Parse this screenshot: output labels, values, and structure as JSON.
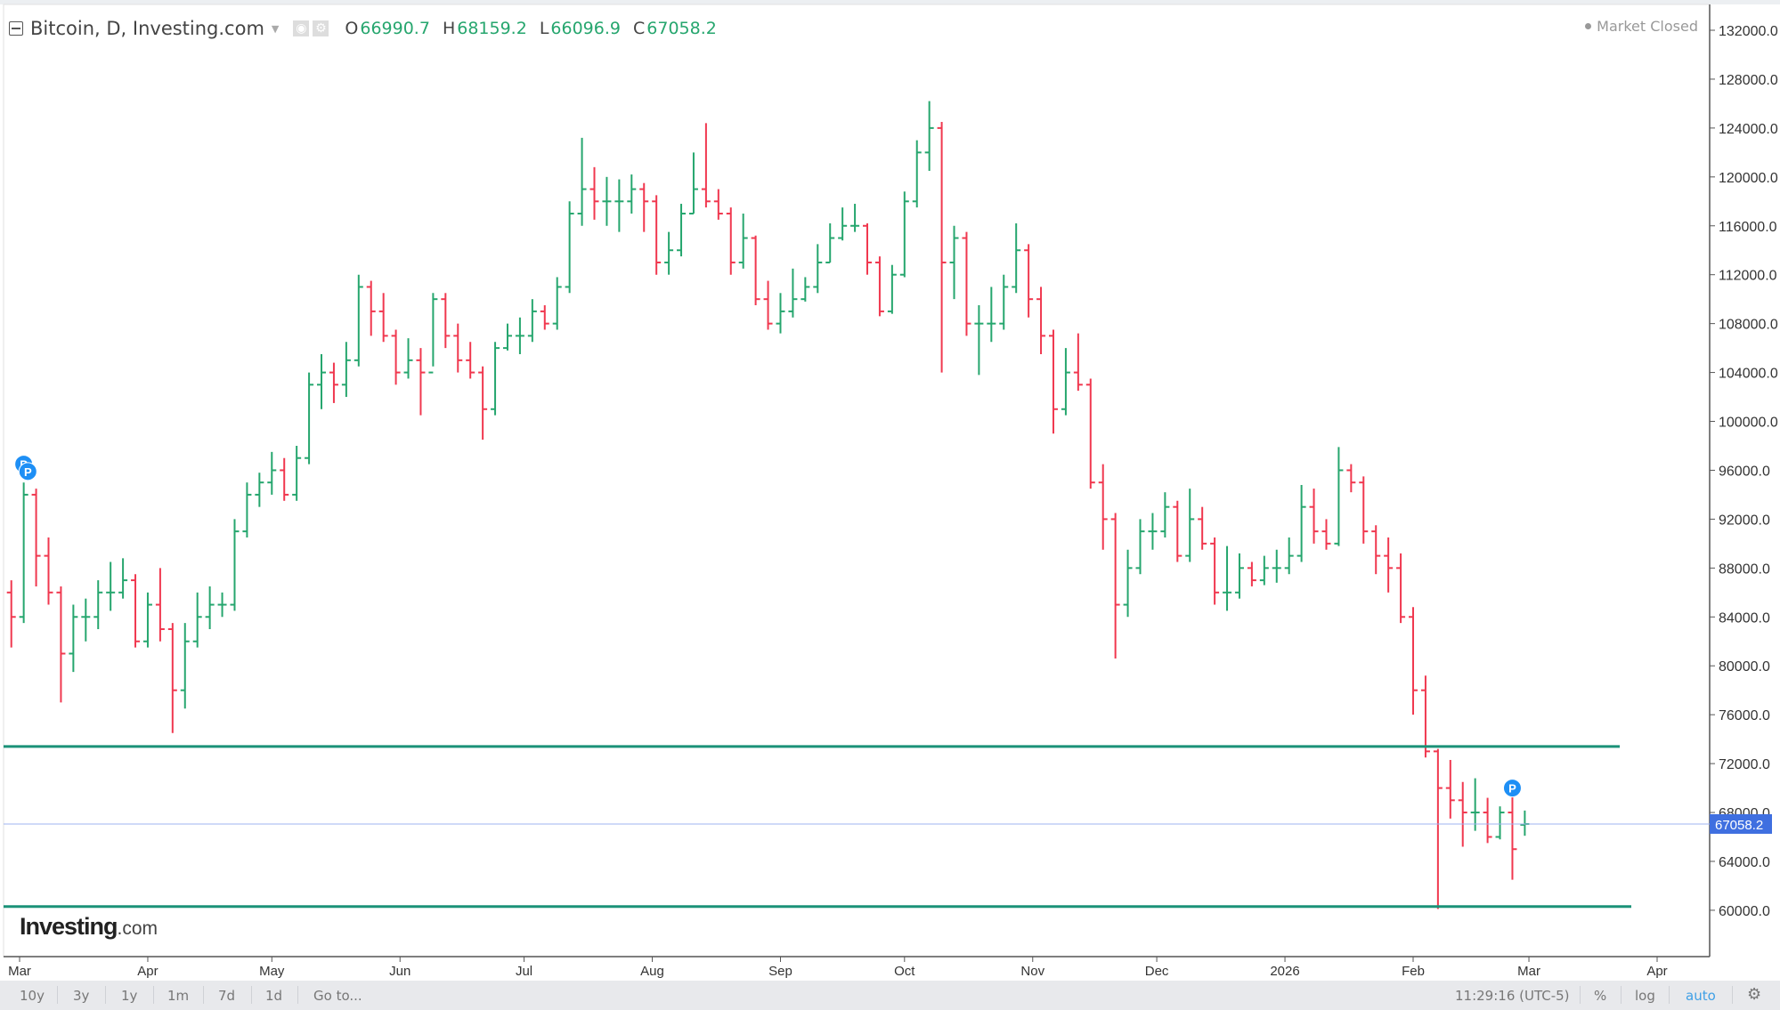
{
  "header": {
    "title": "Bitcoin, D, Investing.com",
    "ohlc": [
      {
        "key": "O",
        "value": "66990.7"
      },
      {
        "key": "H",
        "value": "68159.2"
      },
      {
        "key": "L",
        "value": "66096.9"
      },
      {
        "key": "C",
        "value": "67058.2"
      }
    ],
    "status": "Market Closed"
  },
  "logo": {
    "brand": "Investing",
    "suffix": ".com"
  },
  "colors": {
    "up": "#26a66e",
    "down": "#f0384f",
    "support_line": "#1b9278",
    "last_price": "#3f6fe0",
    "marker": "#1e8ff5"
  },
  "toolbar": {
    "ranges": [
      "10y",
      "3y",
      "1y",
      "1m",
      "7d",
      "1d"
    ],
    "goto": "Go to...",
    "time": "11:29:16 (UTC-5)",
    "percent": "%",
    "log": "log",
    "auto": "auto",
    "settings_icon": "gear-icon"
  },
  "chart_data": {
    "type": "ohlc",
    "title": "Bitcoin, D, Investing.com",
    "ylim": [
      58000,
      133000
    ],
    "y_ticks": [
      "60000.0",
      "64000.0",
      "68000.0",
      "72000.0",
      "76000.0",
      "80000.0",
      "84000.0",
      "88000.0",
      "92000.0",
      "96000.0",
      "100000.0",
      "104000.0",
      "108000.0",
      "112000.0",
      "116000.0",
      "120000.0",
      "124000.0",
      "128000.0",
      "132000.0"
    ],
    "x_ticks": [
      {
        "label": "Mar",
        "date": "2025-03-01"
      },
      {
        "label": "Apr",
        "date": "2025-04-01"
      },
      {
        "label": "May",
        "date": "2025-05-01"
      },
      {
        "label": "Jun",
        "date": "2025-06-01"
      },
      {
        "label": "Jul",
        "date": "2025-07-01"
      },
      {
        "label": "Aug",
        "date": "2025-08-01"
      },
      {
        "label": "Sep",
        "date": "2025-09-01"
      },
      {
        "label": "Oct",
        "date": "2025-10-01"
      },
      {
        "label": "Nov",
        "date": "2025-11-01"
      },
      {
        "label": "Dec",
        "date": "2025-12-01"
      },
      {
        "label": "2026",
        "date": "2026-01-01"
      },
      {
        "label": "Feb",
        "date": "2026-02-01"
      },
      {
        "label": "Mar",
        "date": "2026-03-01"
      },
      {
        "label": "Apr",
        "date": "2026-04-01"
      }
    ],
    "last_price": 67058.2,
    "last_price_label": "67058.2",
    "horizontal_lines": [
      73400,
      60300
    ],
    "markers": [
      {
        "label": "P",
        "date": "2025-03-02",
        "price": 96500
      },
      {
        "label": "P",
        "date": "2025-03-03",
        "price": 95900
      },
      {
        "label": "P",
        "date": "2026-02-25",
        "price": 70000
      }
    ],
    "bars_fields": [
      "date",
      "open",
      "high",
      "low",
      "close"
    ],
    "bars": [
      [
        "2025-02-27",
        86000,
        87000,
        81500,
        84000
      ],
      [
        "2025-03-02",
        84000,
        95000,
        83500,
        94000
      ],
      [
        "2025-03-05",
        94000,
        94500,
        86500,
        89000
      ],
      [
        "2025-03-08",
        89000,
        90500,
        85000,
        86000
      ],
      [
        "2025-03-11",
        86000,
        86500,
        77000,
        81000
      ],
      [
        "2025-03-14",
        81000,
        85000,
        79500,
        84000
      ],
      [
        "2025-03-17",
        84000,
        85500,
        82000,
        84000
      ],
      [
        "2025-03-20",
        84000,
        87000,
        83000,
        86000
      ],
      [
        "2025-03-23",
        86000,
        88500,
        84500,
        86000
      ],
      [
        "2025-03-26",
        86000,
        88800,
        85500,
        87000
      ],
      [
        "2025-03-29",
        87000,
        87500,
        81500,
        82000
      ],
      [
        "2025-04-01",
        82000,
        86000,
        81500,
        85000
      ],
      [
        "2025-04-04",
        85000,
        88000,
        82000,
        83000
      ],
      [
        "2025-04-07",
        83000,
        83500,
        74500,
        78000
      ],
      [
        "2025-04-10",
        78000,
        83500,
        76500,
        82000
      ],
      [
        "2025-04-13",
        82000,
        86000,
        81500,
        84000
      ],
      [
        "2025-04-16",
        84000,
        86500,
        83000,
        85000
      ],
      [
        "2025-04-19",
        85000,
        86000,
        84000,
        85000
      ],
      [
        "2025-04-22",
        85000,
        92000,
        84500,
        91000
      ],
      [
        "2025-04-25",
        91000,
        95000,
        90500,
        94000
      ],
      [
        "2025-04-28",
        94000,
        95800,
        93000,
        95000
      ],
      [
        "2025-05-01",
        95000,
        97500,
        94000,
        96000
      ],
      [
        "2025-05-04",
        96000,
        97000,
        93500,
        94000
      ],
      [
        "2025-05-07",
        94000,
        98000,
        93500,
        97000
      ],
      [
        "2025-05-10",
        97000,
        104000,
        96500,
        103000
      ],
      [
        "2025-05-13",
        103000,
        105500,
        101000,
        104000
      ],
      [
        "2025-05-16",
        104000,
        104800,
        101500,
        103000
      ],
      [
        "2025-05-19",
        103000,
        106500,
        102000,
        105000
      ],
      [
        "2025-05-22",
        105000,
        112000,
        104500,
        111000
      ],
      [
        "2025-05-25",
        111000,
        111500,
        107000,
        109000
      ],
      [
        "2025-05-28",
        109000,
        110500,
        106500,
        107000
      ],
      [
        "2025-05-31",
        107000,
        107500,
        103000,
        104000
      ],
      [
        "2025-06-03",
        104000,
        106800,
        103500,
        105000
      ],
      [
        "2025-06-06",
        105000,
        106000,
        100500,
        104000
      ],
      [
        "2025-06-09",
        104000,
        110500,
        104500,
        110000
      ],
      [
        "2025-06-12",
        110000,
        110500,
        106000,
        107000
      ],
      [
        "2025-06-15",
        107000,
        108000,
        104000,
        105000
      ],
      [
        "2025-06-18",
        105000,
        106500,
        103500,
        104000
      ],
      [
        "2025-06-21",
        104000,
        104500,
        98500,
        101000
      ],
      [
        "2025-06-24",
        101000,
        106500,
        100500,
        106000
      ],
      [
        "2025-06-27",
        106000,
        108000,
        105800,
        107000
      ],
      [
        "2025-06-30",
        107000,
        108500,
        105500,
        107000
      ],
      [
        "2025-07-03",
        107000,
        110000,
        106500,
        109000
      ],
      [
        "2025-07-06",
        109000,
        109500,
        107500,
        108000
      ],
      [
        "2025-07-09",
        108000,
        111800,
        107500,
        111000
      ],
      [
        "2025-07-12",
        111000,
        118000,
        110500,
        117000
      ],
      [
        "2025-07-15",
        117000,
        123200,
        116000,
        119000
      ],
      [
        "2025-07-18",
        119000,
        120800,
        116500,
        118000
      ],
      [
        "2025-07-21",
        118000,
        120000,
        116000,
        118000
      ],
      [
        "2025-07-24",
        118000,
        119800,
        115500,
        118000
      ],
      [
        "2025-07-27",
        118000,
        120200,
        117000,
        119000
      ],
      [
        "2025-07-30",
        119000,
        119500,
        115500,
        118000
      ],
      [
        "2025-08-02",
        118000,
        118500,
        112000,
        113000
      ],
      [
        "2025-08-05",
        113000,
        115500,
        112000,
        114000
      ],
      [
        "2025-08-08",
        114000,
        117800,
        113500,
        117000
      ],
      [
        "2025-08-11",
        117000,
        122000,
        117000,
        119000
      ],
      [
        "2025-08-14",
        119000,
        124400,
        117500,
        118000
      ],
      [
        "2025-08-17",
        118000,
        119000,
        116500,
        117000
      ],
      [
        "2025-08-20",
        117000,
        117500,
        112000,
        113000
      ],
      [
        "2025-08-23",
        113000,
        117000,
        112500,
        115000
      ],
      [
        "2025-08-26",
        115000,
        115200,
        109500,
        110000
      ],
      [
        "2025-08-29",
        110000,
        111500,
        107500,
        108000
      ],
      [
        "2025-09-01",
        108000,
        110500,
        107200,
        109000
      ],
      [
        "2025-09-04",
        109000,
        112500,
        108500,
        110000
      ],
      [
        "2025-09-07",
        110000,
        111800,
        109800,
        111000
      ],
      [
        "2025-09-10",
        111000,
        114500,
        110500,
        113000
      ],
      [
        "2025-09-13",
        113000,
        116200,
        113000,
        115000
      ],
      [
        "2025-09-16",
        115000,
        117500,
        114800,
        116000
      ],
      [
        "2025-09-19",
        116000,
        117800,
        115500,
        116000
      ],
      [
        "2025-09-22",
        116000,
        116200,
        112000,
        113000
      ],
      [
        "2025-09-25",
        113000,
        113500,
        108600,
        109000
      ],
      [
        "2025-09-28",
        109000,
        112800,
        108800,
        112000
      ],
      [
        "2025-10-01",
        112000,
        118800,
        111800,
        118000
      ],
      [
        "2025-10-04",
        118000,
        123000,
        117500,
        122000
      ],
      [
        "2025-10-07",
        122000,
        126200,
        120500,
        124000
      ],
      [
        "2025-10-10",
        124000,
        124500,
        104000,
        113000
      ],
      [
        "2025-10-13",
        113000,
        116000,
        110000,
        115000
      ],
      [
        "2025-10-16",
        115000,
        115500,
        107000,
        108000
      ],
      [
        "2025-10-19",
        108000,
        109500,
        103800,
        108000
      ],
      [
        "2025-10-22",
        108000,
        111000,
        106500,
        108000
      ],
      [
        "2025-10-25",
        108000,
        112000,
        107500,
        111000
      ],
      [
        "2025-10-28",
        111000,
        116200,
        110500,
        114000
      ],
      [
        "2025-10-31",
        114000,
        114500,
        108500,
        110000
      ],
      [
        "2025-11-03",
        110000,
        111000,
        105500,
        107000
      ],
      [
        "2025-11-06",
        107000,
        107500,
        99000,
        101000
      ],
      [
        "2025-11-09",
        101000,
        106000,
        100500,
        104000
      ],
      [
        "2025-11-12",
        104000,
        107200,
        102500,
        103000
      ],
      [
        "2025-11-15",
        103000,
        103500,
        94500,
        95000
      ],
      [
        "2025-11-18",
        95000,
        96500,
        89500,
        92000
      ],
      [
        "2025-11-21",
        92000,
        92500,
        80600,
        85000
      ],
      [
        "2025-11-24",
        85000,
        89500,
        84000,
        88000
      ],
      [
        "2025-11-27",
        88000,
        92000,
        87500,
        91000
      ],
      [
        "2025-11-30",
        91000,
        92500,
        89500,
        91000
      ],
      [
        "2025-12-03",
        91000,
        94200,
        90500,
        93000
      ],
      [
        "2025-12-06",
        93000,
        93500,
        88500,
        89000
      ],
      [
        "2025-12-09",
        89000,
        94500,
        88500,
        92000
      ],
      [
        "2025-12-12",
        92000,
        93000,
        89500,
        90000
      ],
      [
        "2025-12-15",
        90000,
        90500,
        85000,
        86000
      ],
      [
        "2025-12-18",
        86000,
        89800,
        84500,
        86000
      ],
      [
        "2025-12-21",
        86000,
        89200,
        85500,
        88000
      ],
      [
        "2025-12-24",
        88000,
        88500,
        86500,
        87000
      ],
      [
        "2025-12-27",
        87000,
        89000,
        86600,
        88000
      ],
      [
        "2025-12-30",
        88000,
        89500,
        86800,
        88000
      ],
      [
        "2026-01-02",
        88000,
        90500,
        87500,
        89000
      ],
      [
        "2026-01-05",
        89000,
        94800,
        88500,
        93000
      ],
      [
        "2026-01-08",
        93000,
        94500,
        90000,
        91000
      ],
      [
        "2026-01-11",
        91000,
        92000,
        89500,
        90000
      ],
      [
        "2026-01-14",
        90000,
        97900,
        89800,
        96000
      ],
      [
        "2026-01-17",
        96000,
        96500,
        94200,
        95000
      ],
      [
        "2026-01-20",
        95000,
        95500,
        90000,
        91000
      ],
      [
        "2026-01-23",
        91000,
        91500,
        87500,
        89000
      ],
      [
        "2026-01-26",
        89000,
        90500,
        86000,
        88000
      ],
      [
        "2026-01-29",
        88000,
        89200,
        83500,
        84000
      ],
      [
        "2026-02-01",
        84000,
        84800,
        76000,
        78000
      ],
      [
        "2026-02-04",
        78000,
        79200,
        72500,
        73000
      ],
      [
        "2026-02-07",
        73000,
        73200,
        60100,
        70000
      ],
      [
        "2026-02-10",
        70000,
        72300,
        67500,
        69000
      ],
      [
        "2026-02-13",
        69000,
        70500,
        65200,
        68000
      ],
      [
        "2026-02-16",
        68000,
        70800,
        66500,
        68000
      ],
      [
        "2026-02-19",
        68000,
        69200,
        65500,
        66000
      ],
      [
        "2026-02-22",
        66000,
        68500,
        65800,
        68000
      ],
      [
        "2026-02-25",
        68000,
        69800,
        62500,
        65000
      ],
      [
        "2026-02-28",
        66990.7,
        68159.2,
        66096.9,
        67058.2
      ]
    ]
  }
}
